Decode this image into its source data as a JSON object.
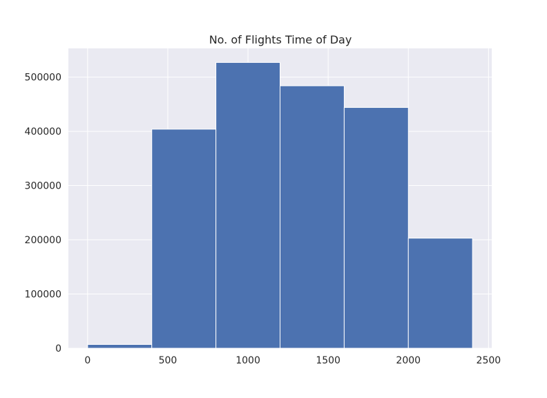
{
  "chart_data": {
    "type": "histogram",
    "title": "No. of Flights Time of Day",
    "xlabel": "",
    "ylabel": "",
    "bins": [
      {
        "x0": 0,
        "x1": 400,
        "value": 7000
      },
      {
        "x0": 400,
        "x1": 800,
        "value": 404000
      },
      {
        "x0": 800,
        "x1": 1200,
        "value": 527000
      },
      {
        "x0": 1200,
        "x1": 1600,
        "value": 484000
      },
      {
        "x0": 1600,
        "x1": 2000,
        "value": 444000
      },
      {
        "x0": 2000,
        "x1": 2400,
        "value": 203000
      }
    ],
    "xlim": [
      -120,
      2520
    ],
    "ylim": [
      0,
      553000
    ],
    "x_ticks": [
      0,
      500,
      1000,
      1500,
      2000,
      2500
    ],
    "x_tick_labels": [
      "0",
      "500",
      "1000",
      "1500",
      "2000",
      "2500"
    ],
    "y_ticks": [
      0,
      100000,
      200000,
      300000,
      400000,
      500000
    ],
    "y_tick_labels": [
      "0",
      "100000",
      "200000",
      "300000",
      "400000",
      "500000"
    ],
    "grid": true,
    "colors": {
      "bar": "#4c72b0",
      "bar_edge": "#ffffff",
      "plot_background": "#eaeaf2",
      "grid": "#ffffff",
      "text": "#262626"
    }
  }
}
